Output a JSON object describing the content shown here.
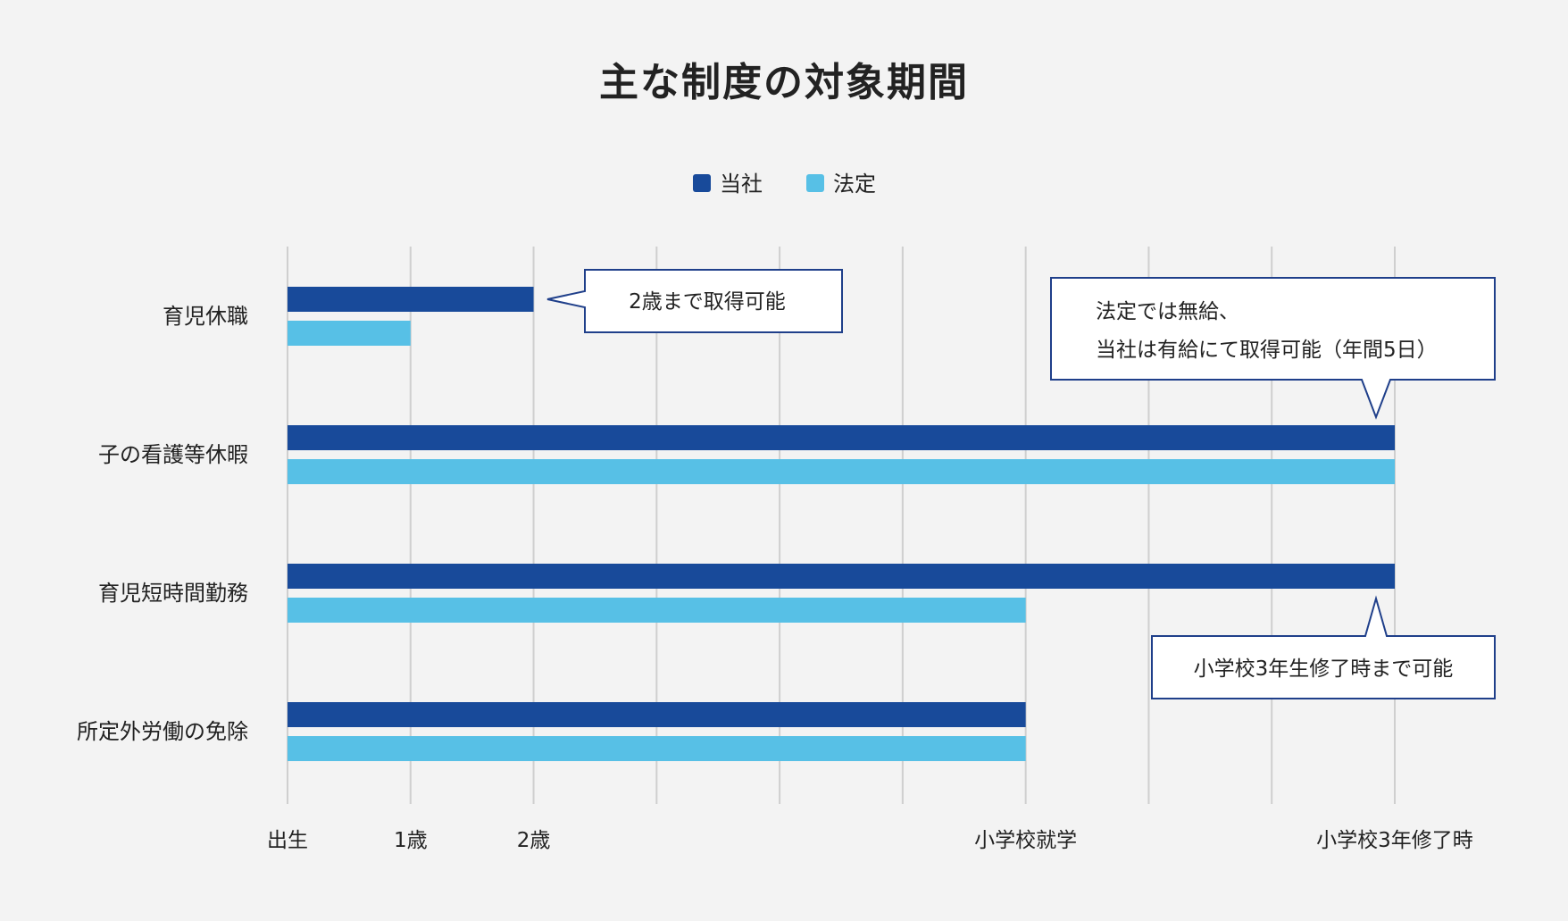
{
  "chart_data": {
    "type": "bar",
    "orientation": "horizontal",
    "title": "主な制度の対象期間",
    "legend": {
      "position": "top-center",
      "entries": [
        {
          "name": "当社",
          "color": "#184a9a"
        },
        {
          "name": "法定",
          "color": "#57c0e6"
        }
      ]
    },
    "x_ticks": [
      {
        "value": 0,
        "label": "出生"
      },
      {
        "value": 1,
        "label": "1歳"
      },
      {
        "value": 2,
        "label": "2歳"
      },
      {
        "value": 3,
        "label": ""
      },
      {
        "value": 4,
        "label": ""
      },
      {
        "value": 5,
        "label": ""
      },
      {
        "value": 6,
        "label": "小学校就学"
      },
      {
        "value": 7,
        "label": ""
      },
      {
        "value": 8,
        "label": ""
      },
      {
        "value": 9,
        "label": "小学校3年修了時"
      }
    ],
    "xlim": [
      0,
      9
    ],
    "grid": true,
    "categories": [
      "育児休職",
      "子の看護等休暇",
      "育児短時間勤務",
      "所定外労働の免除"
    ],
    "series": [
      {
        "name": "当社",
        "color": "#184a9a",
        "values": [
          2,
          9,
          9,
          6
        ]
      },
      {
        "name": "法定",
        "color": "#57c0e6",
        "values": [
          1,
          9,
          6,
          6
        ]
      }
    ],
    "annotations": [
      {
        "id": "a1",
        "lines": [
          "2歳まで取得可能"
        ]
      },
      {
        "id": "a2",
        "lines": [
          "法定では無給、",
          "当社は有給にて取得可能（年間5日）"
        ]
      },
      {
        "id": "a3",
        "lines": [
          "小学校3年生修了時まで可能"
        ]
      }
    ]
  }
}
